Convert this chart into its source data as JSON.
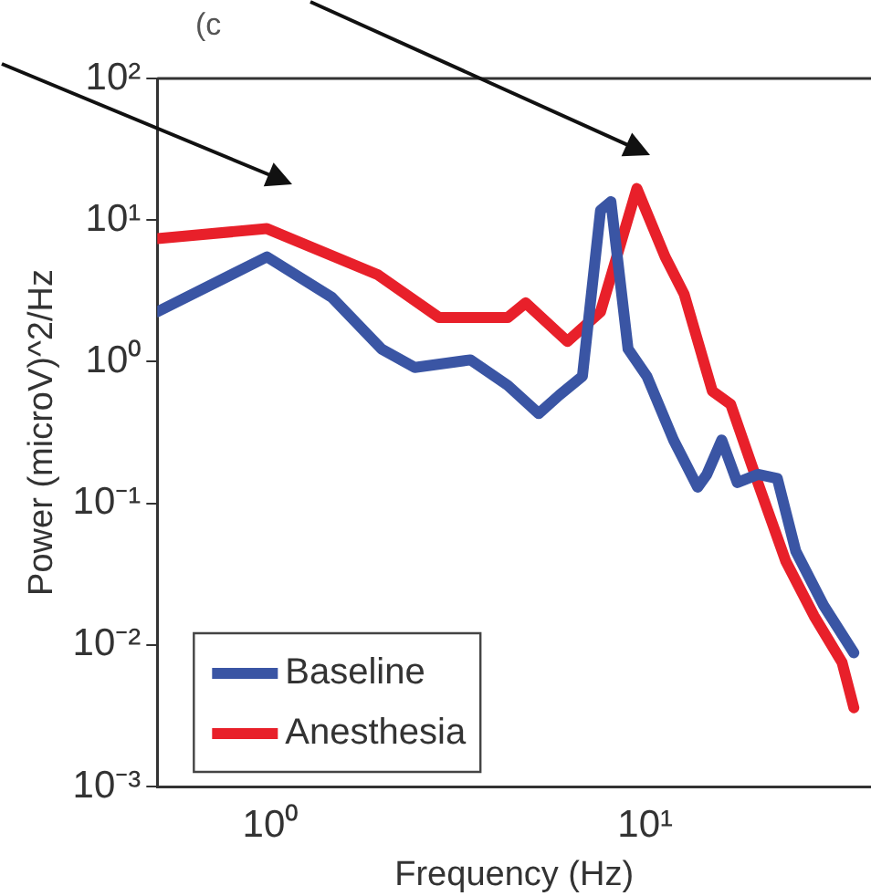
{
  "chart_data": {
    "type": "line",
    "xlabel": "Frequency (Hz)",
    "ylabel": "Power (microV)^2/Hz",
    "annotations": [
      "(c"
    ],
    "log": "xy",
    "grid": false,
    "legend": "bottom left",
    "marker": "none",
    "line_style": "solid",
    "xlim": [
      0.5,
      40
    ],
    "xticks": [
      {
        "value": 1,
        "label": "10⁰"
      },
      {
        "value": 10,
        "label": "10¹"
      }
    ],
    "ylim": [
      0.001,
      100
    ],
    "yticks": [
      {
        "value": 0.001,
        "label": "10⁻³"
      },
      {
        "value": 0.01,
        "label": "10⁻²"
      },
      {
        "value": 0.1,
        "label": "10⁻¹"
      },
      {
        "value": 1,
        "label": "10⁰"
      },
      {
        "value": 10,
        "label": "10¹"
      },
      {
        "value": 100,
        "label": "10²"
      }
    ],
    "series": [
      {
        "name": "Baseline",
        "color": "#3a55a4",
        "x": [
          0.5,
          0.98,
          1.46,
          1.98,
          2.43,
          3.42,
          4.3,
          5.2,
          5.9,
          6.8,
          7.6,
          8.1,
          9.0,
          10.1,
          11.9,
          13.8,
          14.6,
          16.0,
          17.6,
          20,
          22.5,
          25.2,
          29.9,
          36
        ],
        "values": [
          2.25,
          5.5,
          2.85,
          1.23,
          0.91,
          1.03,
          0.68,
          0.43,
          0.58,
          0.79,
          11.7,
          13.5,
          1.23,
          0.79,
          0.28,
          0.13,
          0.16,
          0.28,
          0.14,
          0.16,
          0.15,
          0.046,
          0.019,
          0.0088
        ]
      },
      {
        "name": "Anesthesia",
        "color": "#e8202a",
        "x": [
          0.5,
          0.98,
          1.94,
          2.82,
          4.3,
          4.8,
          6.2,
          7.6,
          9.5,
          11.3,
          12.7,
          15.1,
          16.9,
          20,
          23.7,
          28.2,
          33.5,
          36
        ],
        "values": [
          7.4,
          8.7,
          4.1,
          2.05,
          2.05,
          2.6,
          1.39,
          2.25,
          16.7,
          5.5,
          3.0,
          0.62,
          0.5,
          0.138,
          0.039,
          0.016,
          0.0075,
          0.0036
        ]
      }
    ]
  }
}
